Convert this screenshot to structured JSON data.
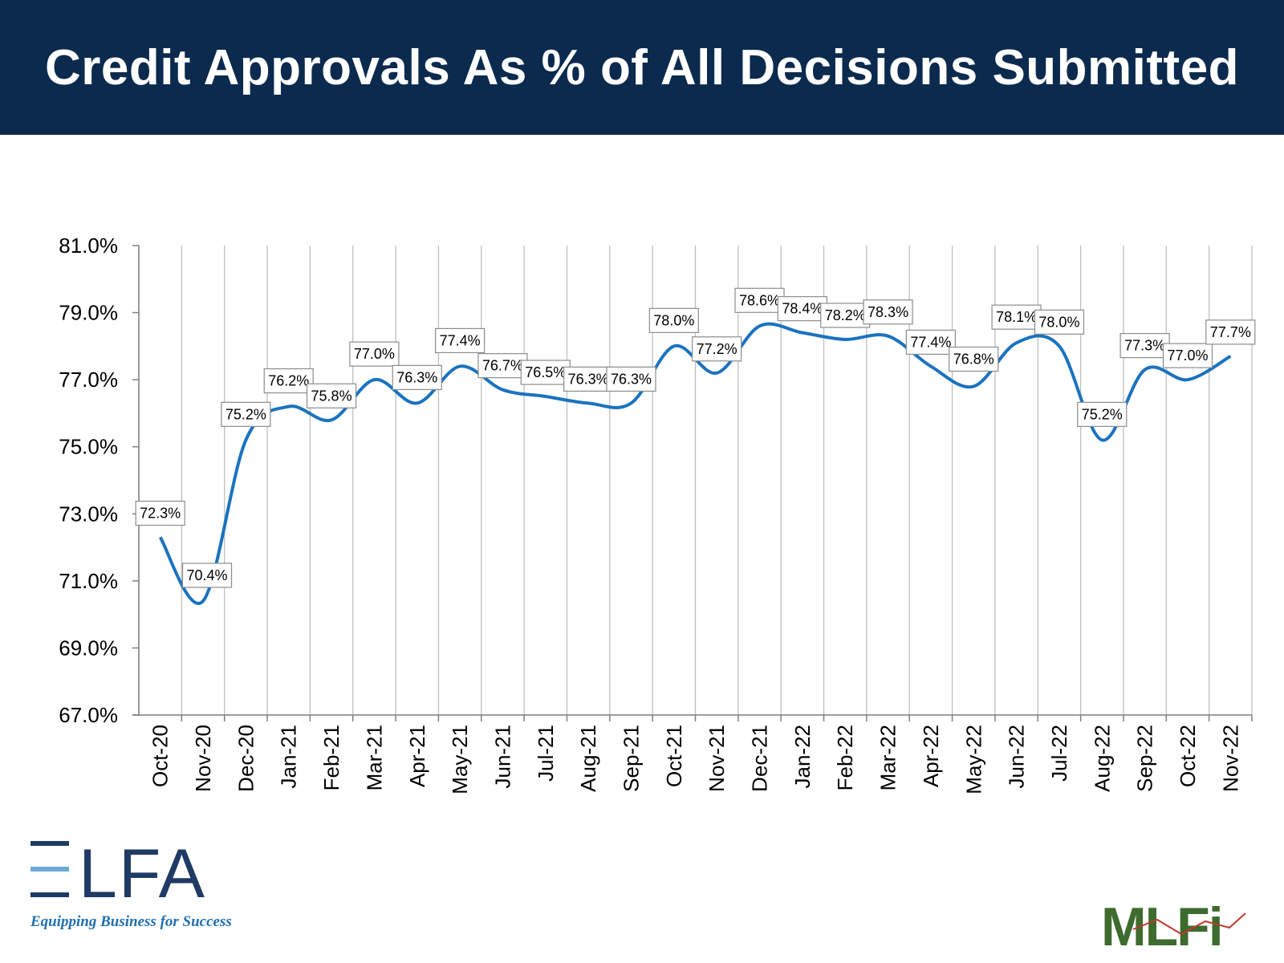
{
  "header": {
    "title": "Credit Approvals As % of All Decisions Submitted"
  },
  "colors": {
    "header_bg": "#0b2a4e",
    "line": "#1a73c0",
    "grid": "#bfbfbf",
    "elfa_dark": "#1f3a64",
    "elfa_light": "#6aa9d8",
    "mlfi_green": "#3e6b2e",
    "mlfi_red": "#c0392b"
  },
  "chart_data": {
    "type": "line",
    "title": "",
    "xlabel": "",
    "ylabel": "",
    "ylim": [
      67.0,
      81.0
    ],
    "y_ticks": [
      "67.0%",
      "69.0%",
      "71.0%",
      "73.0%",
      "75.0%",
      "77.0%",
      "79.0%",
      "81.0%"
    ],
    "y_tick_values": [
      67,
      69,
      71,
      73,
      75,
      77,
      79,
      81
    ],
    "grid": "vertical",
    "categories": [
      "Oct-20",
      "Nov-20",
      "Dec-20",
      "Jan-21",
      "Feb-21",
      "Mar-21",
      "Apr-21",
      "May-21",
      "Jun-21",
      "Jul-21",
      "Aug-21",
      "Sep-21",
      "Oct-21",
      "Nov-21",
      "Dec-21",
      "Jan-22",
      "Feb-22",
      "Mar-22",
      "Apr-22",
      "May-22",
      "Jun-22",
      "Jul-22",
      "Aug-22",
      "Sep-22",
      "Oct-22",
      "Nov-22"
    ],
    "values": [
      72.3,
      70.4,
      75.2,
      76.2,
      75.8,
      77.0,
      76.3,
      77.4,
      76.7,
      76.5,
      76.3,
      76.3,
      78.0,
      77.2,
      78.6,
      78.4,
      78.2,
      78.3,
      77.4,
      76.8,
      78.1,
      78.0,
      75.2,
      77.3,
      77.0,
      77.7
    ],
    "data_labels": [
      "72.3%",
      "70.4%",
      "75.2%",
      "76.2%",
      "75.8%",
      "77.0%",
      "76.3%",
      "77.4%",
      "76.7%",
      "76.5%",
      "76.3%",
      "76.3%",
      "78.0%",
      "77.2%",
      "78.6%",
      "78.4%",
      "78.2%",
      "78.3%",
      "77.4%",
      "76.8%",
      "78.1%",
      "78.0%",
      "75.2%",
      "77.3%",
      "77.0%",
      "77.7%"
    ]
  },
  "logos": {
    "elfa": {
      "text": "ELFA",
      "tagline": "Equipping Business for Success"
    },
    "mlfi": {
      "text": "MLFi"
    }
  }
}
